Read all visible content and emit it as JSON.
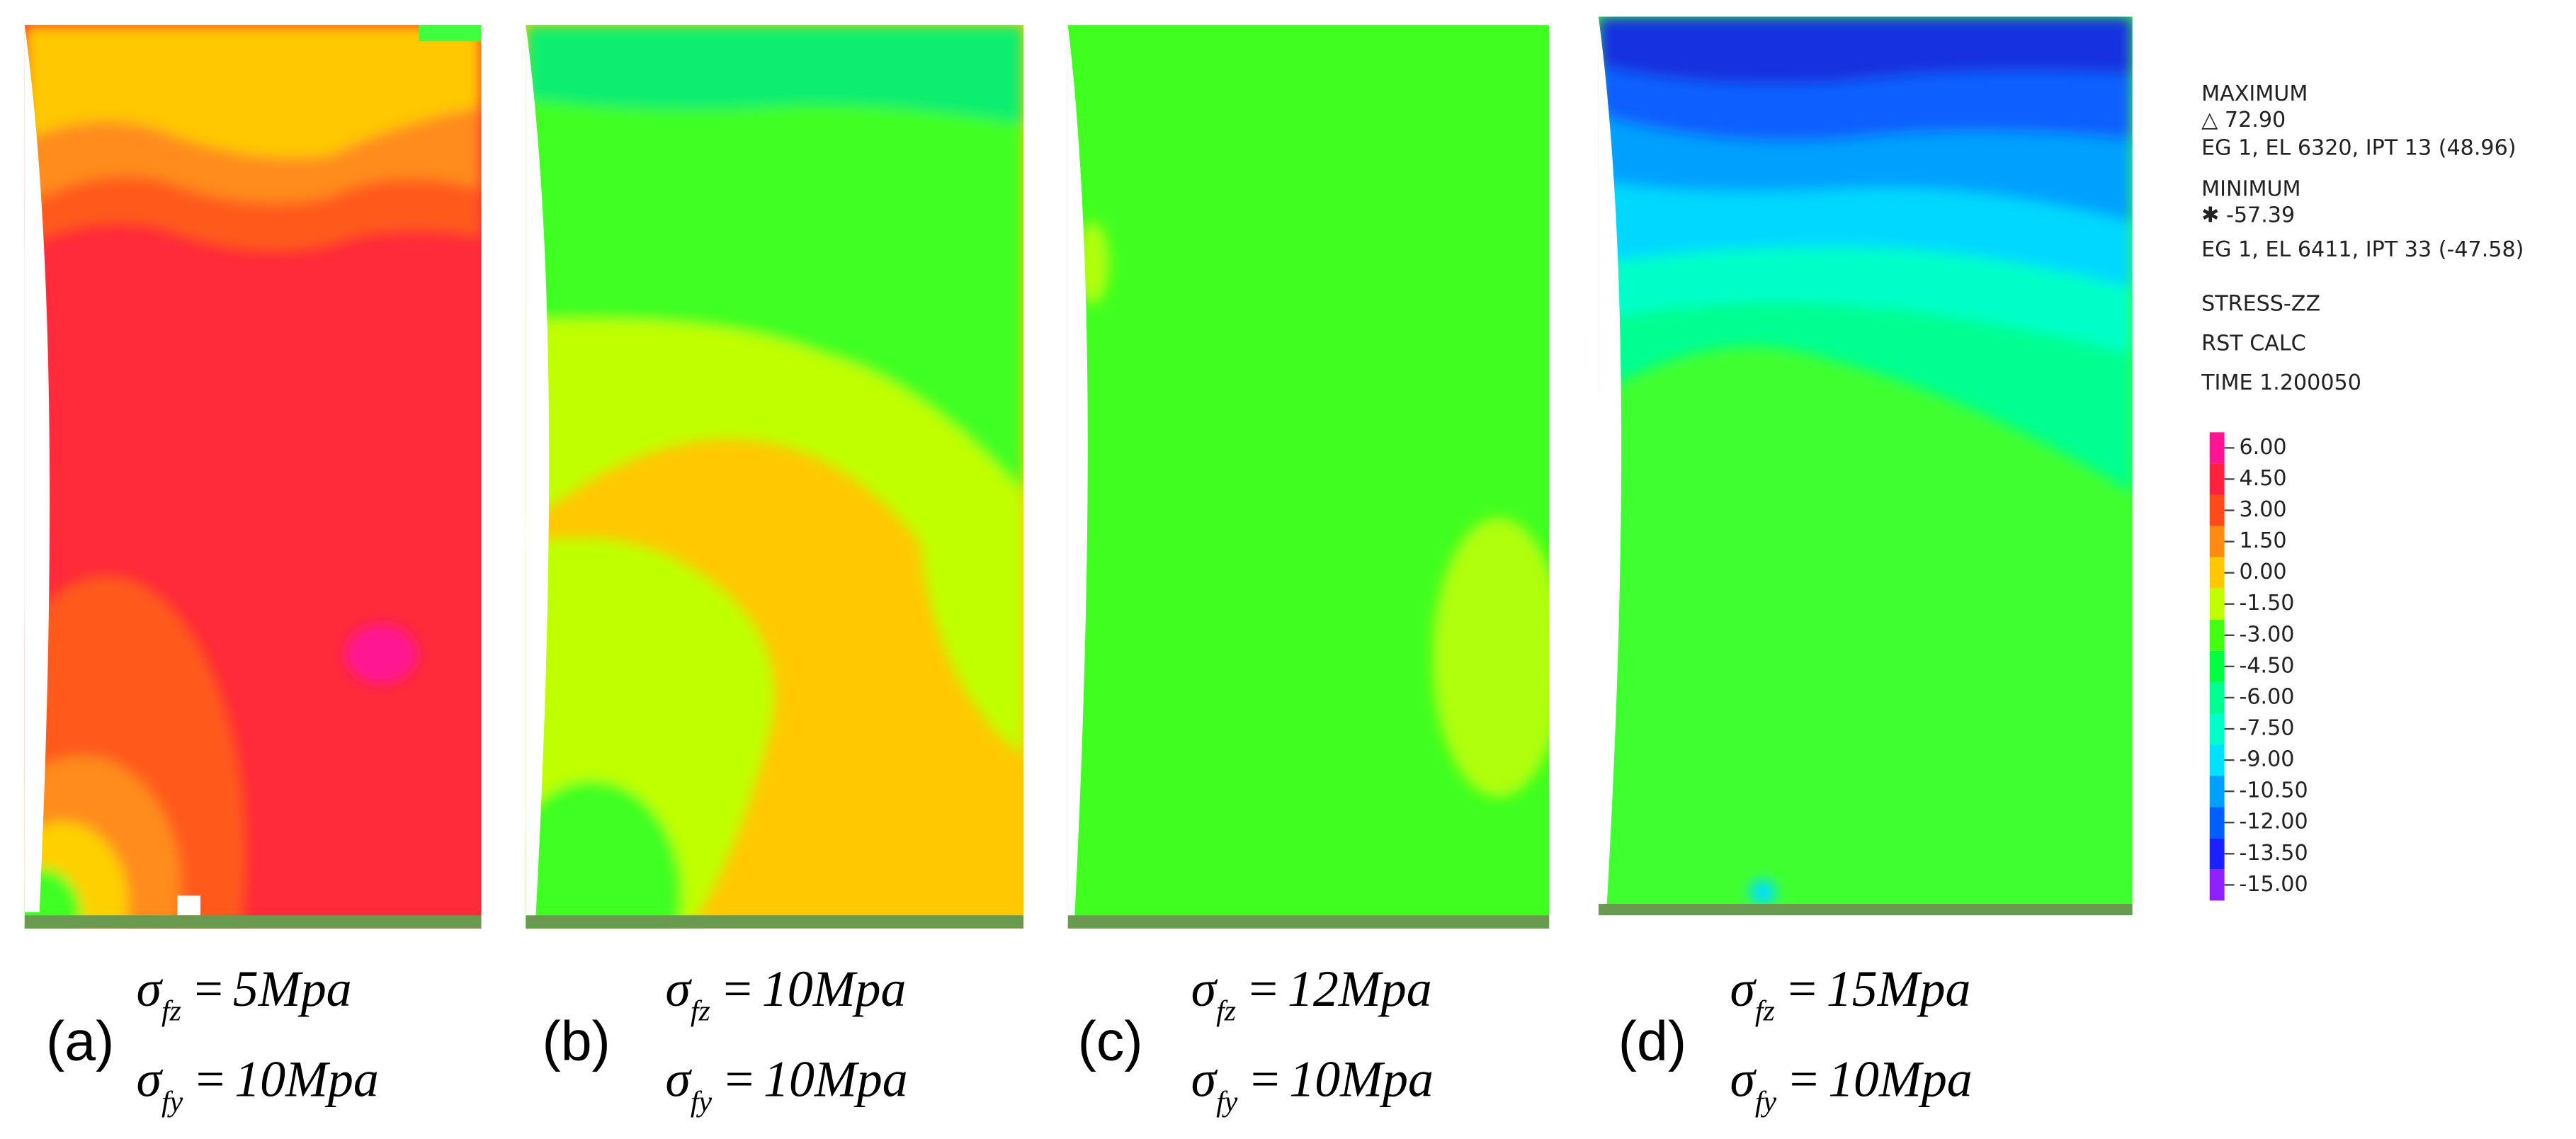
{
  "panels": [
    {
      "label": "(a)",
      "equations": [
        {
          "symbol": "σ",
          "subscript": "fz",
          "relation": "=",
          "value": "5Mpa"
        },
        {
          "symbol": "σ",
          "subscript": "fy",
          "relation": "=",
          "value": "10Mpa"
        }
      ]
    },
    {
      "label": "(b)",
      "equations": [
        {
          "symbol": "σ",
          "subscript": "fz",
          "relation": "=",
          "value": "10Mpa"
        },
        {
          "symbol": "σ",
          "subscript": "fy",
          "relation": "=",
          "value": "10Mpa"
        }
      ]
    },
    {
      "label": "(c)",
      "equations": [
        {
          "symbol": "σ",
          "subscript": "fz",
          "relation": "=",
          "value": "12Mpa"
        },
        {
          "symbol": "σ",
          "subscript": "fy",
          "relation": "=",
          "value": "10Mpa"
        }
      ]
    },
    {
      "label": "(d)",
      "equations": [
        {
          "symbol": "σ",
          "subscript": "fz",
          "relation": "=",
          "value": "15Mpa"
        },
        {
          "symbol": "σ",
          "subscript": "fy",
          "relation": "=",
          "value": "10Mpa"
        }
      ]
    }
  ],
  "info": [
    "MAXIMUM",
    "△ 72.90",
    "EG 1, EL 6320, IPT 13 (48.96)",
    "MINIMUM",
    "✱ -57.39",
    "EG 1, EL 6411, IPT 33 (-47.58)",
    "STRESS-ZZ",
    "RST CALC",
    "TIME 1.200050"
  ],
  "legend": [
    {
      "label": "6.00",
      "color": "#ff1493"
    },
    {
      "label": "4.50",
      "color": "#ff2040"
    },
    {
      "label": "3.00",
      "color": "#ff4a1a"
    },
    {
      "label": "1.50",
      "color": "#ff8a10"
    },
    {
      "label": "0.00",
      "color": "#ffc800"
    },
    {
      "label": "-1.50",
      "color": "#c0ff00"
    },
    {
      "label": "-3.00",
      "color": "#40ff10"
    },
    {
      "label": "-4.50",
      "color": "#00ff40"
    },
    {
      "label": "-6.00",
      "color": "#00ff90"
    },
    {
      "label": "-7.50",
      "color": "#00ffc8"
    },
    {
      "label": "-9.00",
      "color": "#00e0ff"
    },
    {
      "label": "-10.50",
      "color": "#00a0ff"
    },
    {
      "label": "-12.00",
      "color": "#0060ff"
    },
    {
      "label": "-13.50",
      "color": "#1a20ff"
    },
    {
      "label": "-15.00",
      "color": "#9020ff"
    }
  ]
}
